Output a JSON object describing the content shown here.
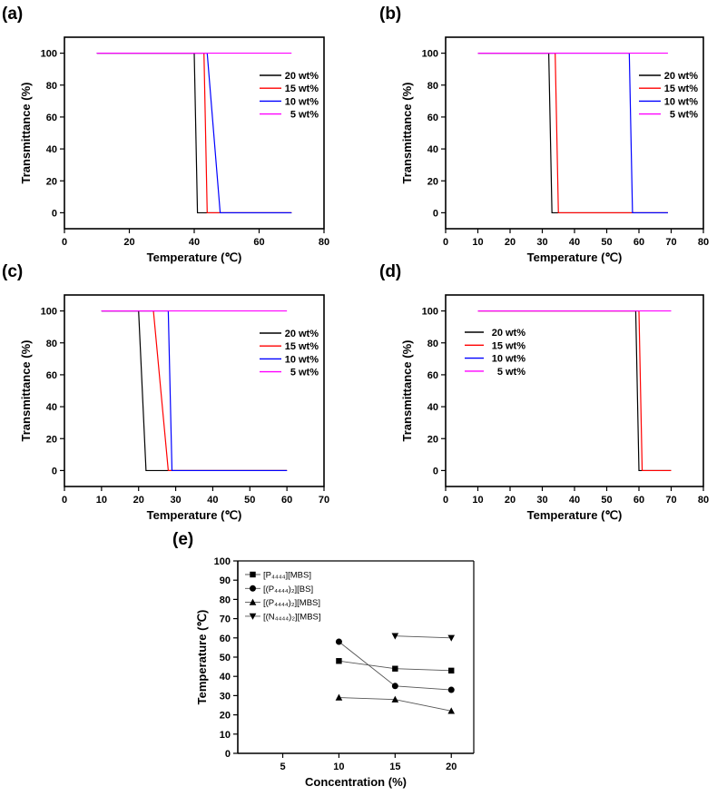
{
  "chart_data": [
    {
      "panel": "(a)",
      "type": "line",
      "xlabel": "Temperature (℃)",
      "ylabel": "Transmittance (%)",
      "xlim": [
        0,
        80
      ],
      "ylim": [
        -10,
        110
      ],
      "xticks": [
        0,
        20,
        40,
        60,
        80
      ],
      "yticks": [
        0,
        20,
        40,
        60,
        80,
        100
      ],
      "legend": "top-right",
      "series": [
        {
          "name": "20 wt%",
          "color": "#000000",
          "x": [
            10,
            40,
            41,
            70
          ],
          "y": [
            100,
            100,
            0,
            0
          ]
        },
        {
          "name": "15 wt%",
          "color": "#ff0000",
          "x": [
            10,
            43,
            44,
            70
          ],
          "y": [
            100,
            100,
            0,
            0
          ]
        },
        {
          "name": "10 wt%",
          "color": "#0000ff",
          "x": [
            10,
            44,
            48,
            70
          ],
          "y": [
            100,
            100,
            0,
            0
          ]
        },
        {
          "name": "5 wt%",
          "color": "#ff00ff",
          "x": [
            10,
            70
          ],
          "y": [
            100,
            100
          ]
        }
      ]
    },
    {
      "panel": "(b)",
      "type": "line",
      "xlabel": "Temperature (℃)",
      "ylabel": "Transmittance (%)",
      "xlim": [
        0,
        80
      ],
      "ylim": [
        -10,
        110
      ],
      "xticks": [
        0,
        10,
        20,
        30,
        40,
        50,
        60,
        70,
        80
      ],
      "yticks": [
        0,
        20,
        40,
        60,
        80,
        100
      ],
      "legend": "top-right",
      "series": [
        {
          "name": "20 wt%",
          "color": "#000000",
          "x": [
            10,
            32,
            33,
            69
          ],
          "y": [
            100,
            100,
            0,
            0
          ]
        },
        {
          "name": "15 wt%",
          "color": "#ff0000",
          "x": [
            10,
            34,
            35,
            69
          ],
          "y": [
            100,
            100,
            0,
            0
          ]
        },
        {
          "name": "10 wt%",
          "color": "#0000ff",
          "x": [
            10,
            57,
            58,
            69
          ],
          "y": [
            100,
            100,
            0,
            0
          ]
        },
        {
          "name": "5 wt%",
          "color": "#ff00ff",
          "x": [
            10,
            69
          ],
          "y": [
            100,
            100
          ]
        }
      ]
    },
    {
      "panel": "(c)",
      "type": "line",
      "xlabel": "Temperature (℃)",
      "ylabel": "Transmittance (%)",
      "xlim": [
        0,
        70
      ],
      "ylim": [
        -10,
        110
      ],
      "xticks": [
        0,
        10,
        20,
        30,
        40,
        50,
        60,
        70
      ],
      "yticks": [
        0,
        20,
        40,
        60,
        80,
        100
      ],
      "legend": "top-right",
      "series": [
        {
          "name": "20 wt%",
          "color": "#000000",
          "x": [
            10,
            20,
            22,
            60
          ],
          "y": [
            100,
            100,
            0,
            0
          ]
        },
        {
          "name": "15 wt%",
          "color": "#ff0000",
          "x": [
            10,
            24,
            28,
            60
          ],
          "y": [
            100,
            100,
            0,
            0
          ]
        },
        {
          "name": "10 wt%",
          "color": "#0000ff",
          "x": [
            10,
            28,
            29,
            60
          ],
          "y": [
            100,
            100,
            0,
            0
          ]
        },
        {
          "name": "5 wt%",
          "color": "#ff00ff",
          "x": [
            10,
            60
          ],
          "y": [
            100,
            100
          ]
        }
      ]
    },
    {
      "panel": "(d)",
      "type": "line",
      "xlabel": "Temperature (℃)",
      "ylabel": "Transmittance (%)",
      "xlim": [
        0,
        80
      ],
      "ylim": [
        -10,
        110
      ],
      "xticks": [
        0,
        10,
        20,
        30,
        40,
        50,
        60,
        70,
        80
      ],
      "yticks": [
        0,
        20,
        40,
        60,
        80,
        100
      ],
      "legend": "top-left",
      "series": [
        {
          "name": "20 wt%",
          "color": "#000000",
          "x": [
            10,
            59,
            60,
            70
          ],
          "y": [
            100,
            100,
            0,
            0
          ]
        },
        {
          "name": "15 wt%",
          "color": "#ff0000",
          "x": [
            10,
            60,
            61,
            70
          ],
          "y": [
            100,
            100,
            0,
            0
          ]
        },
        {
          "name": "10 wt%",
          "color": "#0000ff",
          "x": [],
          "y": []
        },
        {
          "name": "5 wt%",
          "color": "#ff00ff",
          "x": [
            10,
            70
          ],
          "y": [
            100,
            100
          ]
        }
      ]
    },
    {
      "panel": "(e)",
      "type": "line",
      "xlabel": "Concentration (%)",
      "ylabel": "Temperature (℃)",
      "xlim": [
        1,
        22
      ],
      "ylim": [
        0,
        100
      ],
      "xticks": [
        5,
        10,
        15,
        20
      ],
      "yticks": [
        0,
        10,
        20,
        30,
        40,
        50,
        60,
        70,
        80,
        90,
        100
      ],
      "legend": "top-left",
      "series": [
        {
          "name": "[P₄₄₄₄][MBS]",
          "marker": "square",
          "color": "#000000",
          "x": [
            10,
            15,
            20
          ],
          "y": [
            48,
            44,
            43
          ]
        },
        {
          "name": "[(P₄₄₄₄)₂][BS]",
          "marker": "circle",
          "color": "#000000",
          "x": [
            10,
            15,
            20
          ],
          "y": [
            58,
            35,
            33
          ]
        },
        {
          "name": "[(P₄₄₄₄)₂][MBS]",
          "marker": "triangle-up",
          "color": "#000000",
          "x": [
            10,
            15,
            20
          ],
          "y": [
            29,
            28,
            22
          ]
        },
        {
          "name": "[(N₄₄₄₄)₂][MBS]",
          "marker": "triangle-down",
          "color": "#000000",
          "x": [
            15,
            20
          ],
          "y": [
            61,
            60
          ]
        }
      ]
    }
  ]
}
